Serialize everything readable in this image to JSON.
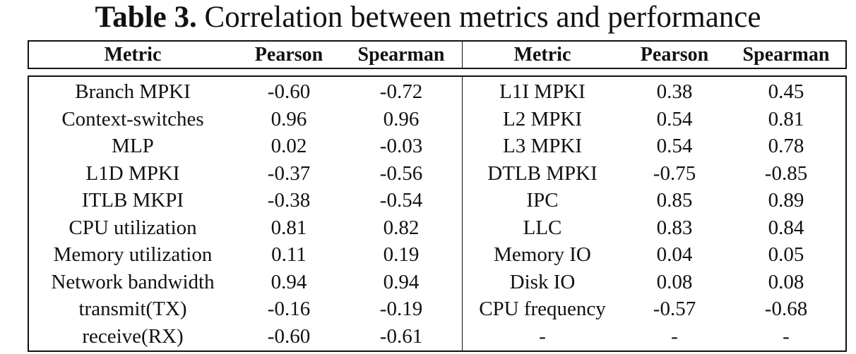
{
  "caption": {
    "label": "Table 3.",
    "text": " Correlation between metrics and performance"
  },
  "headers": [
    "Metric",
    "Pearson",
    "Spearman",
    "Metric",
    "Pearson",
    "Spearman"
  ],
  "rows": [
    [
      "Branch MPKI",
      "-0.60",
      "-0.72",
      "L1I MPKI",
      "0.38",
      "0.45"
    ],
    [
      "Context-switches",
      "0.96",
      "0.96",
      "L2 MPKI",
      "0.54",
      "0.81"
    ],
    [
      "MLP",
      "0.02",
      "-0.03",
      "L3 MPKI",
      "0.54",
      "0.78"
    ],
    [
      "L1D MPKI",
      "-0.37",
      "-0.56",
      "DTLB MPKI",
      "-0.75",
      "-0.85"
    ],
    [
      "ITLB MKPI",
      "-0.38",
      "-0.54",
      "IPC",
      "0.85",
      "0.89"
    ],
    [
      "CPU utilization",
      "0.81",
      "0.82",
      "LLC",
      "0.83",
      "0.84"
    ],
    [
      "Memory utilization",
      "0.11",
      "0.19",
      "Memory IO",
      "0.04",
      "0.05"
    ],
    [
      "Network bandwidth",
      "0.94",
      "0.94",
      "Disk IO",
      "0.08",
      "0.08"
    ],
    [
      "transmit(TX)",
      "-0.16",
      "-0.19",
      "CPU frequency",
      "-0.57",
      "-0.68"
    ],
    [
      "receive(RX)",
      "-0.60",
      "-0.61",
      "-",
      "-",
      "-"
    ]
  ]
}
